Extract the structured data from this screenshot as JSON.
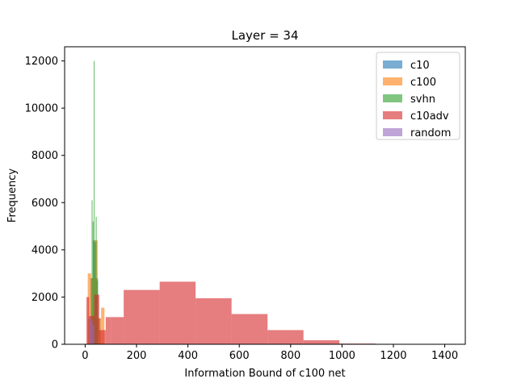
{
  "chart_data": {
    "type": "histogram",
    "title": "Layer = 34",
    "xlabel": "Information Bound of c100 net",
    "ylabel": "Frequency",
    "xlim": [
      -80,
      1480
    ],
    "ylim": [
      0,
      12600
    ],
    "xticks": [
      0,
      200,
      400,
      600,
      800,
      1000,
      1200,
      1400
    ],
    "yticks": [
      0,
      2000,
      4000,
      6000,
      8000,
      10000,
      12000
    ],
    "legend_position": "top-right",
    "series": [
      {
        "name": "c10",
        "color": "#1f77b4",
        "bins": [
          [
            10,
            20,
            1100
          ],
          [
            20,
            30,
            2800
          ],
          [
            30,
            40,
            4400
          ],
          [
            40,
            50,
            2800
          ],
          [
            50,
            60,
            1100
          ]
        ]
      },
      {
        "name": "c100",
        "color": "#ff7f0e",
        "bins": [
          [
            10,
            23,
            3000
          ],
          [
            23,
            36,
            2800
          ],
          [
            36,
            49,
            4400
          ],
          [
            49,
            62,
            1100
          ],
          [
            62,
            75,
            1550
          ]
        ]
      },
      {
        "name": "svhn",
        "color": "#2ca02c",
        "bins": [
          [
            25,
            29,
            6100
          ],
          [
            29,
            33,
            5200
          ],
          [
            33,
            37,
            12000
          ],
          [
            37,
            41,
            4300
          ],
          [
            41,
            45,
            5400
          ],
          [
            45,
            50,
            2700
          ]
        ]
      },
      {
        "name": "c10adv",
        "color": "#d62728",
        "bins": [
          [
            5,
            15,
            2000
          ],
          [
            15,
            35,
            1200
          ],
          [
            35,
            55,
            2100
          ],
          [
            55,
            80,
            600
          ],
          [
            80,
            100,
            1150
          ],
          [
            100,
            150,
            1150
          ],
          [
            150,
            290,
            2300
          ],
          [
            290,
            430,
            2650
          ],
          [
            430,
            570,
            1950
          ],
          [
            570,
            710,
            1280
          ],
          [
            710,
            850,
            600
          ],
          [
            850,
            990,
            170
          ],
          [
            990,
            1130,
            30
          ]
        ]
      },
      {
        "name": "random",
        "color": "#9467bd",
        "bins": [
          [
            15,
            22,
            1150
          ],
          [
            22,
            29,
            1000
          ],
          [
            29,
            36,
            800
          ]
        ]
      }
    ]
  }
}
